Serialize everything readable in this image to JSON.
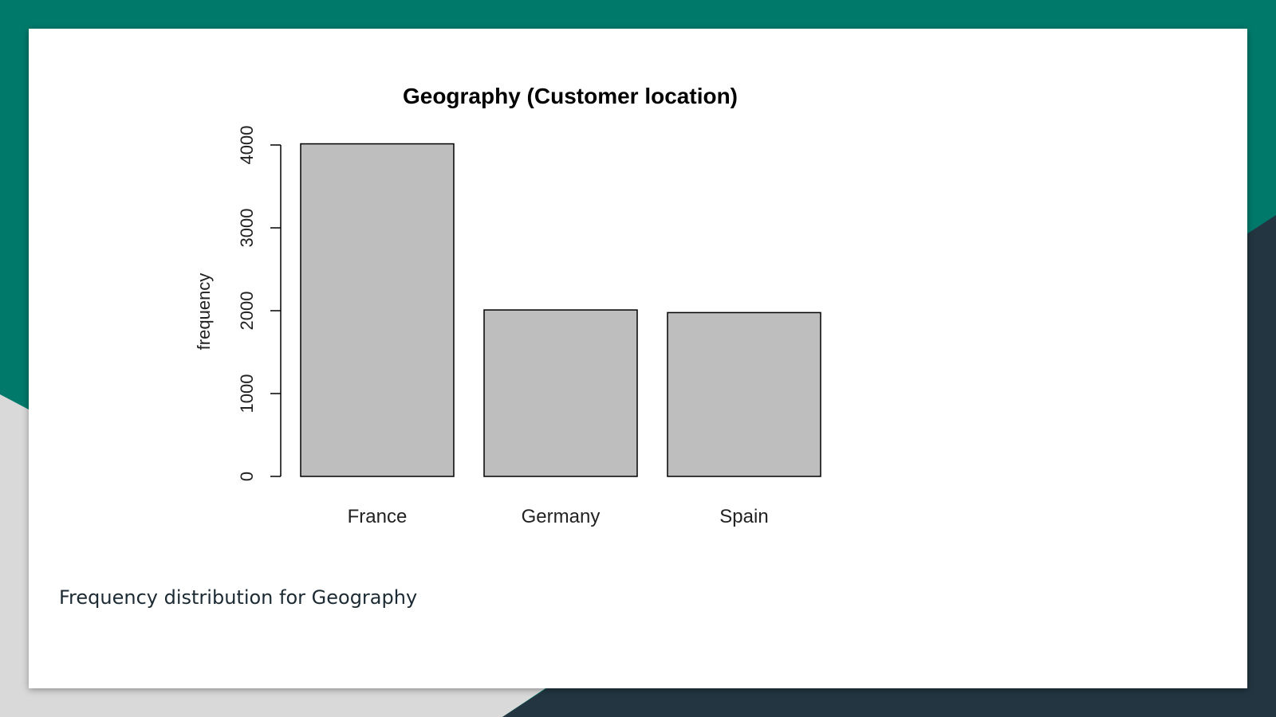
{
  "slide": {
    "caption": "Frequency distribution for Geography",
    "colors": {
      "teal": "#00796b",
      "dark_slate": "#223540",
      "light_gray": "#d9d9d9",
      "bar_fill": "#bebebe",
      "card": "#ffffff"
    }
  },
  "chart_data": {
    "type": "bar",
    "title": "Geography (Customer location)",
    "xlabel": "",
    "ylabel": "frequency",
    "categories": [
      "France",
      "Germany",
      "Spain"
    ],
    "values": [
      4014,
      2009,
      1977
    ],
    "ylim": [
      0,
      4000
    ],
    "yticks": [
      0,
      1000,
      2000,
      3000,
      4000
    ],
    "ytick_labels": [
      "0",
      "1000",
      "2000",
      "3000",
      "4000"
    ],
    "grid": false
  }
}
